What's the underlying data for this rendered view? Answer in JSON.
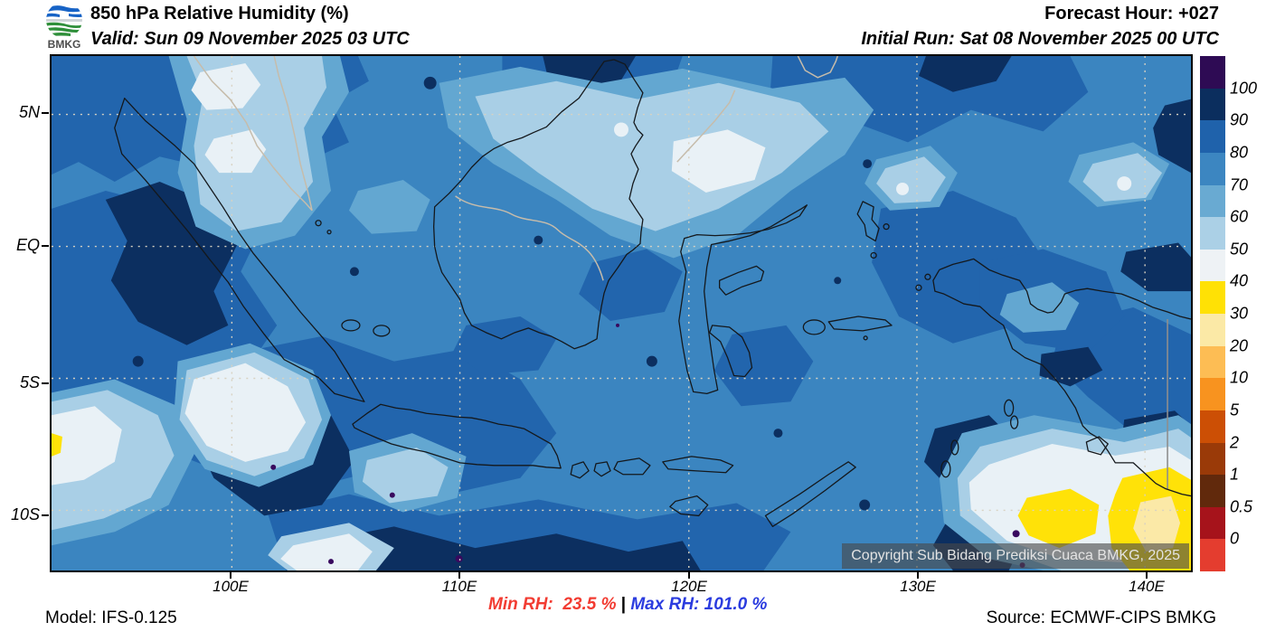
{
  "header": {
    "logo_text": "BMKG",
    "title": "850 hPa Relative Humidity (%)",
    "valid_line": "Valid: Sun 09 November 2025 03 UTC",
    "forecast_hour": "Forecast Hour: +027",
    "initial_run": "Initial Run: Sat 08 November 2025 00 UTC"
  },
  "map": {
    "copyright": "Copyright Sub Bidang Prediksi Cuaca BMKG, 2025",
    "lat_labels": {
      "0": "5N",
      "1": "EQ",
      "2": "5S",
      "3": "10S"
    },
    "lon_labels": {
      "0": "100E",
      "1": "110E",
      "2": "120E",
      "3": "130E",
      "4": "140E"
    }
  },
  "legend": {
    "tick_labels": [
      "100",
      "90",
      "80",
      "70",
      "60",
      "50",
      "40",
      "30",
      "20",
      "10",
      "5",
      "2",
      "1",
      "0.5",
      "0"
    ],
    "colors_top_to_bottom": [
      "#2e0b54",
      "#0b2e5e",
      "#1f62ab",
      "#3c86c1",
      "#69aad2",
      "#abd0e6",
      "#eef2f5",
      "#ffe105",
      "#fbe9a6",
      "#fdbd54",
      "#f8931f",
      "#cc4f05",
      "#9a3a08",
      "#61290c",
      "#a6131b",
      "#e43d2f"
    ]
  },
  "footer": {
    "model": "Model: IFS-0.125",
    "min_rh": "Min RH:  23.5 %",
    "separator": " | ",
    "max_rh": "Max RH: 101.0 %",
    "min_color": "#f23c32",
    "max_color": "#2b3cdf",
    "source": "Source: ECMWF-CIPS BMKG"
  }
}
